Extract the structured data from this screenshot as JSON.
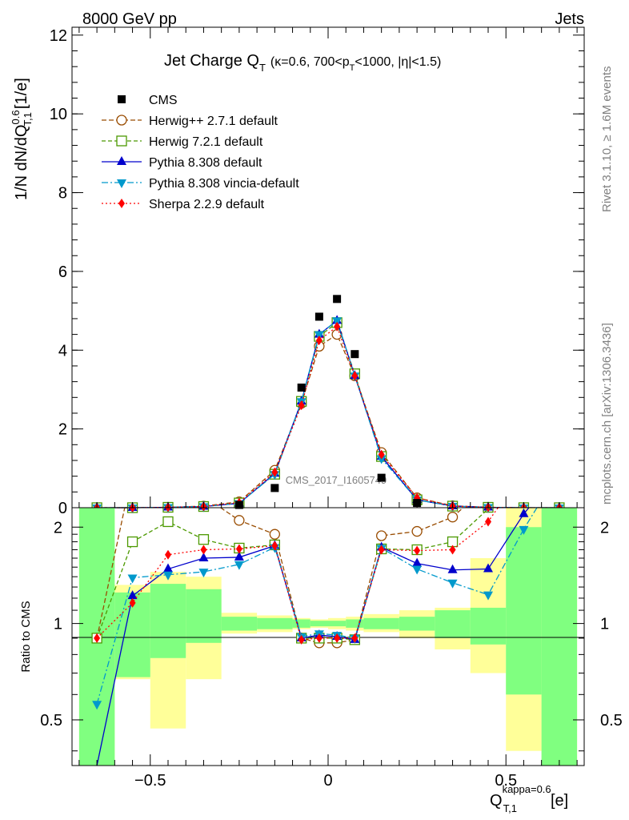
{
  "header": {
    "left": "8000 GeV pp",
    "right": "Jets"
  },
  "side_texts": {
    "rivet": "Rivet 3.1.10, ≥ 1.6M events",
    "mcplots": "mcplots.cern.ch [arXiv:1306.3436]"
  },
  "chart_data": {
    "type": "line",
    "title": "Jet Charge Q_T (κ=0.6, 700<p_T<1000, |η|<1.5)",
    "title_main": "Jet Charge Q",
    "title_sub": "T",
    "title_detail_a": "(κ=0.6, 700<p",
    "title_detail_sub": "T",
    "title_detail_b": "<1000, |η|<1.5)",
    "ylabel": "1/N dN/dQ^0.6_T,1 [1/e]",
    "ylabel_main": "1/N dN/dQ",
    "ylabel_sup": "0.6",
    "ylabel_sub": "T,1",
    "ylabel_unit": "[1/e]",
    "xlabel_main": "Q",
    "xlabel_sup": "kappa=0.6",
    "xlabel_sub": "T,1",
    "xlabel_unit": "[e]",
    "ratio_ylabel": "Ratio to CMS",
    "watermark": "CMS_2017_I1605749",
    "xlim": [
      -0.72,
      0.72
    ],
    "ylim": [
      0,
      12.2
    ],
    "ratio_ylim": [
      0.36,
      2.3
    ],
    "x_ticks": [
      "−0.5",
      "0",
      "0.5"
    ],
    "x_tick_values": [
      -0.5,
      0,
      0.5
    ],
    "y_ticks": [
      "0",
      "2",
      "4",
      "6",
      "8",
      "10",
      "12"
    ],
    "y_tick_values": [
      0,
      2,
      4,
      6,
      8,
      10,
      12
    ],
    "ratio_ticks": [
      "0.5",
      "1",
      "2"
    ],
    "ratio_tick_values": [
      0.5,
      1,
      2
    ],
    "legend_position": "top-left",
    "bin_edges": [
      -0.7,
      -0.6,
      -0.5,
      -0.4,
      -0.3,
      -0.2,
      -0.1,
      -0.05,
      0,
      0.05,
      0.1,
      0.2,
      0.3,
      0.4,
      0.5,
      0.6,
      0.7
    ],
    "x": [
      -0.65,
      -0.55,
      -0.45,
      -0.35,
      -0.25,
      -0.15,
      -0.075,
      -0.025,
      0.025,
      0.075,
      0.15,
      0.25,
      0.35,
      0.45,
      0.55,
      0.65
    ],
    "data": {
      "name": "CMS",
      "values": [
        0.0,
        0.0,
        0.0,
        0.02,
        0.07,
        0.5,
        3.05,
        4.85,
        5.3,
        3.9,
        0.76,
        0.12,
        0.02,
        0.0,
        0.0,
        0.0
      ],
      "band_stat": [
        [
          0.0,
          5.0
        ],
        [
          0.68,
          1.25
        ],
        [
          0.78,
          1.33
        ],
        [
          0.87,
          1.28
        ],
        [
          0.95,
          1.05
        ],
        [
          0.96,
          1.04
        ],
        [
          0.97,
          1.03
        ],
        [
          0.98,
          1.02
        ],
        [
          0.98,
          1.02
        ],
        [
          0.97,
          1.03
        ],
        [
          0.96,
          1.04
        ],
        [
          0.95,
          1.05
        ],
        [
          0.9,
          1.1
        ],
        [
          0.86,
          1.12
        ],
        [
          0.6,
          2.0
        ],
        [
          0.3,
          5.0
        ]
      ],
      "band_total": [
        [
          0.0,
          5.0
        ],
        [
          0.67,
          1.32
        ],
        [
          0.47,
          1.45
        ],
        [
          0.67,
          1.4
        ],
        [
          0.93,
          1.08
        ],
        [
          0.94,
          1.06
        ],
        [
          0.96,
          1.04
        ],
        [
          0.97,
          1.03
        ],
        [
          0.96,
          1.04
        ],
        [
          0.95,
          1.05
        ],
        [
          0.94,
          1.07
        ],
        [
          0.9,
          1.1
        ],
        [
          0.83,
          1.12
        ],
        [
          0.7,
          1.6
        ],
        [
          0.4,
          5.0
        ],
        [
          0.3,
          5.0
        ]
      ]
    },
    "series": [
      {
        "name": "Herwig++ 2.7.1 default",
        "color": "#994c00",
        "marker": "circle-open",
        "dash": "6,3",
        "values": [
          0.0,
          0.0,
          0.01,
          0.04,
          0.15,
          0.95,
          2.65,
          4.1,
          4.4,
          3.35,
          1.4,
          0.25,
          0.05,
          0.01,
          0.0,
          0.0
        ],
        "ratio": [
          0.9,
          3.0,
          2.8,
          2.5,
          2.1,
          1.9,
          0.9,
          0.87,
          0.87,
          0.89,
          1.88,
          1.94,
          2.15,
          2.7,
          3.0,
          3.0
        ]
      },
      {
        "name": "Herwig 7.2.1 default",
        "color": "#4c9900",
        "marker": "square-open",
        "dash": "5,3",
        "values": [
          0.0,
          0.0,
          0.01,
          0.03,
          0.12,
          0.85,
          2.7,
          4.35,
          4.7,
          3.4,
          1.3,
          0.2,
          0.04,
          0.01,
          0.0,
          0.0
        ],
        "ratio": [
          0.9,
          1.8,
          2.08,
          1.83,
          1.72,
          1.76,
          0.9,
          0.9,
          0.9,
          0.89,
          1.71,
          1.7,
          1.8,
          2.28,
          2.6,
          3.0
        ]
      },
      {
        "name": "Pythia 8.308 default",
        "color": "#0000cc",
        "marker": "triangle-up",
        "dash": "",
        "values": [
          0.0,
          0.0,
          0.01,
          0.03,
          0.11,
          0.87,
          2.7,
          4.4,
          4.75,
          3.35,
          1.3,
          0.2,
          0.04,
          0.01,
          0.0,
          0.0
        ],
        "ratio": [
          0.22,
          1.22,
          1.48,
          1.6,
          1.61,
          1.75,
          0.9,
          0.92,
          0.91,
          0.89,
          1.73,
          1.54,
          1.47,
          1.48,
          2.2,
          3.0
        ]
      },
      {
        "name": "Pythia 8.308 vincia-default",
        "color": "#0099cc",
        "marker": "triangle-down",
        "dash": "8,3,2,3",
        "values": [
          0.0,
          0.0,
          0.01,
          0.03,
          0.11,
          0.85,
          2.7,
          4.4,
          4.75,
          3.35,
          1.25,
          0.2,
          0.04,
          0.01,
          0.0,
          0.0
        ],
        "ratio": [
          0.56,
          1.39,
          1.42,
          1.45,
          1.53,
          1.73,
          0.91,
          0.93,
          0.92,
          0.9,
          1.72,
          1.48,
          1.34,
          1.23,
          1.97,
          3.0
        ]
      },
      {
        "name": "Sherpa 2.2.9 default",
        "color": "#ff0000",
        "marker": "diamond",
        "dash": "2,3",
        "values": [
          0.0,
          0.0,
          0.01,
          0.03,
          0.13,
          0.9,
          2.6,
          4.25,
          4.6,
          3.35,
          1.35,
          0.25,
          0.04,
          0.01,
          0.0,
          0.0
        ],
        "ratio": [
          0.9,
          1.16,
          1.64,
          1.7,
          1.71,
          1.75,
          0.89,
          0.9,
          0.9,
          0.9,
          1.7,
          1.69,
          1.7,
          2.08,
          3.0,
          3.0
        ]
      }
    ],
    "colors": {
      "band_stat": "#80ff80",
      "band_total": "#ffff99",
      "data_marker": "#000000"
    }
  }
}
